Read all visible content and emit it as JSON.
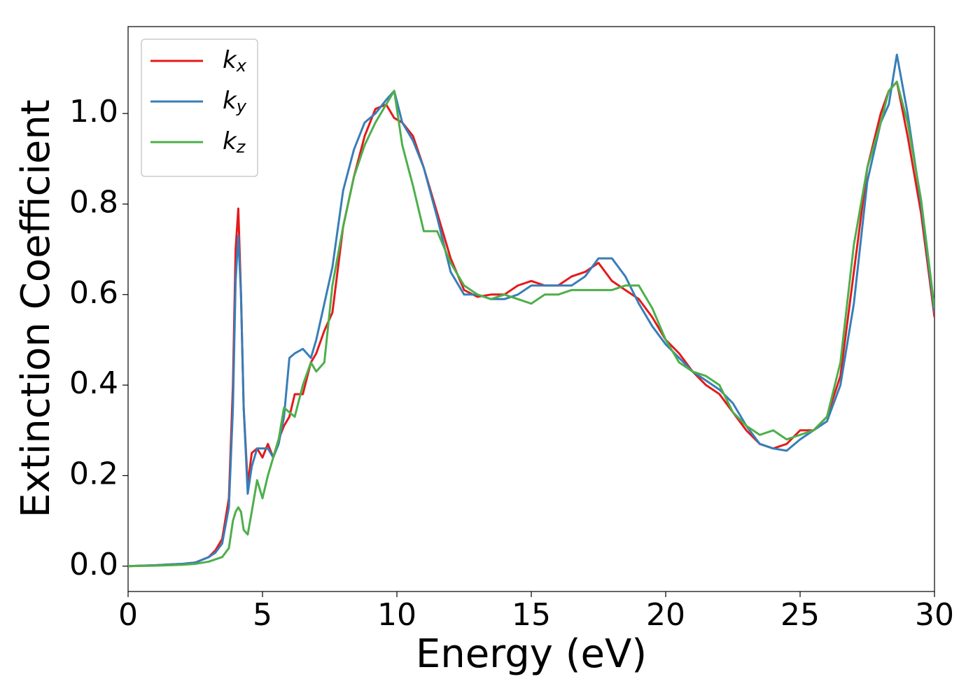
{
  "chart_data": {
    "type": "line",
    "xlabel": "Energy (eV)",
    "ylabel": "Extinction Coefficient",
    "x": [
      0,
      1,
      2,
      2.5,
      3,
      3.25,
      3.5,
      3.75,
      3.9,
      4.0,
      4.1,
      4.2,
      4.3,
      4.45,
      4.6,
      4.8,
      5.0,
      5.2,
      5.4,
      5.6,
      5.8,
      6.0,
      6.2,
      6.5,
      6.8,
      7.0,
      7.3,
      7.6,
      8.0,
      8.4,
      8.8,
      9.2,
      9.6,
      9.9,
      10.2,
      10.6,
      11.0,
      11.5,
      12.0,
      12.5,
      13,
      13.5,
      14,
      14.5,
      15,
      15.5,
      16,
      16.5,
      17,
      17.5,
      18,
      18.5,
      19,
      19.5,
      20,
      20.5,
      21,
      21.5,
      22,
      22.5,
      23,
      23.5,
      24,
      24.5,
      25,
      25.5,
      26,
      26.5,
      27,
      27.5,
      28,
      28.3,
      28.6,
      29,
      29.5,
      30
    ],
    "series": [
      {
        "name": "kx",
        "color": "#e41a1c",
        "values": [
          0,
          0.002,
          0.005,
          0.008,
          0.02,
          0.035,
          0.06,
          0.15,
          0.4,
          0.7,
          0.79,
          0.6,
          0.35,
          0.18,
          0.25,
          0.26,
          0.24,
          0.27,
          0.24,
          0.28,
          0.31,
          0.33,
          0.38,
          0.38,
          0.45,
          0.47,
          0.52,
          0.56,
          0.75,
          0.86,
          0.95,
          1.01,
          1.02,
          0.99,
          0.98,
          0.95,
          0.88,
          0.78,
          0.68,
          0.61,
          0.595,
          0.6,
          0.6,
          0.62,
          0.63,
          0.62,
          0.62,
          0.64,
          0.65,
          0.67,
          0.63,
          0.61,
          0.59,
          0.55,
          0.5,
          0.47,
          0.43,
          0.4,
          0.38,
          0.34,
          0.3,
          0.27,
          0.26,
          0.27,
          0.3,
          0.3,
          0.33,
          0.42,
          0.65,
          0.88,
          1.0,
          1.05,
          1.07,
          0.95,
          0.78,
          0.55
        ]
      },
      {
        "name": "ky",
        "color": "#377eb8",
        "values": [
          0,
          0.002,
          0.005,
          0.008,
          0.02,
          0.03,
          0.05,
          0.13,
          0.35,
          0.63,
          0.73,
          0.6,
          0.35,
          0.16,
          0.22,
          0.26,
          0.26,
          0.26,
          0.24,
          0.27,
          0.33,
          0.46,
          0.47,
          0.48,
          0.46,
          0.5,
          0.58,
          0.66,
          0.83,
          0.92,
          0.98,
          1.0,
          1.03,
          1.05,
          0.98,
          0.94,
          0.88,
          0.77,
          0.65,
          0.6,
          0.6,
          0.59,
          0.59,
          0.6,
          0.62,
          0.62,
          0.62,
          0.62,
          0.64,
          0.68,
          0.68,
          0.64,
          0.58,
          0.53,
          0.49,
          0.46,
          0.43,
          0.41,
          0.39,
          0.36,
          0.31,
          0.27,
          0.26,
          0.255,
          0.28,
          0.3,
          0.32,
          0.4,
          0.58,
          0.85,
          0.98,
          1.02,
          1.13,
          1.0,
          0.8,
          0.56
        ]
      },
      {
        "name": "kz",
        "color": "#4daf4a",
        "values": [
          0,
          0.001,
          0.003,
          0.005,
          0.01,
          0.015,
          0.02,
          0.04,
          0.1,
          0.12,
          0.13,
          0.12,
          0.08,
          0.07,
          0.12,
          0.19,
          0.15,
          0.2,
          0.24,
          0.28,
          0.35,
          0.34,
          0.33,
          0.4,
          0.45,
          0.43,
          0.45,
          0.62,
          0.75,
          0.86,
          0.93,
          0.98,
          1.02,
          1.05,
          0.93,
          0.84,
          0.74,
          0.74,
          0.67,
          0.62,
          0.6,
          0.59,
          0.6,
          0.59,
          0.58,
          0.6,
          0.6,
          0.61,
          0.61,
          0.61,
          0.61,
          0.62,
          0.62,
          0.57,
          0.5,
          0.45,
          0.43,
          0.42,
          0.4,
          0.34,
          0.31,
          0.29,
          0.3,
          0.28,
          0.29,
          0.3,
          0.33,
          0.45,
          0.71,
          0.88,
          0.98,
          1.05,
          1.07,
          0.98,
          0.81,
          0.57
        ]
      }
    ],
    "xlim": [
      0,
      30
    ],
    "xticks": [
      0,
      5,
      10,
      15,
      20,
      25,
      30
    ],
    "ylim": [
      -0.056,
      1.192
    ],
    "yticks": [
      {
        "value": 0,
        "label": "0.0"
      },
      {
        "value": 0.2,
        "label": "0.2"
      },
      {
        "value": 0.4,
        "label": "0.4"
      },
      {
        "value": 0.6,
        "label": "0.6"
      },
      {
        "value": 0.8,
        "label": "0.8"
      },
      {
        "value": 1.0,
        "label": "1.0"
      }
    ],
    "legend": "upper left",
    "grid": false
  }
}
